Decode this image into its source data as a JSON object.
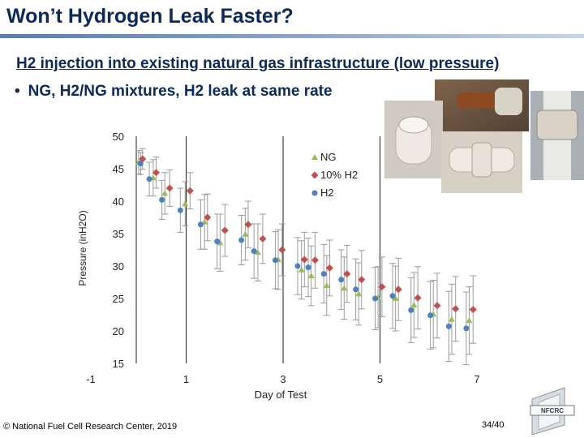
{
  "slide": {
    "title": "Won’t Hydrogen Leak Faster?",
    "subheading": "H2 injection into existing natural gas infrastructure (low pressure)",
    "bullet": "NG, H2/NG mixtures, H2 leak at same rate",
    "bullet_symbol": "•",
    "footer_symbol": "©",
    "footer": "National Fuel Cell Research Center, 2019",
    "page_number": "34/40",
    "logo_text": "NFCRC"
  },
  "chart_data": {
    "type": "scatter",
    "title": "",
    "xlabel": "Day of Test",
    "ylabel": "Pressure (inH2O)",
    "xlim": [
      -1,
      7
    ],
    "ylim": [
      15,
      50
    ],
    "x_ticks": [
      -1,
      1,
      3,
      5,
      7
    ],
    "y_ticks": [
      15,
      20,
      25,
      30,
      35,
      40,
      45,
      50
    ],
    "legend_position": "top-right",
    "colors": {
      "NG": "#9bbb59",
      "10% H2": "#c0504d",
      "H2": "#4f81bd"
    },
    "error_bar_color": "#9a9a9a",
    "series": [
      {
        "name": "NG",
        "marker": "triangle",
        "x": [
          0.02,
          0.32,
          0.56,
          0.98,
          1.38,
          1.7,
          2.22,
          2.48,
          2.9,
          3.38,
          3.58,
          3.9,
          4.26,
          4.56,
          4.96,
          5.32,
          5.7,
          6.1,
          6.48,
          6.84
        ],
        "y": [
          46.0,
          43.6,
          41.2,
          39.6,
          36.8,
          33.6,
          34.9,
          32.1,
          31.0,
          29.4,
          28.5,
          27.0,
          26.6,
          25.7,
          25.2,
          25.0,
          24.0,
          22.6,
          21.8,
          21.6
        ],
        "err": [
          1.8,
          2.8,
          3.2,
          3.4,
          4.2,
          4.4,
          4.0,
          4.4,
          4.6,
          4.5,
          4.6,
          4.6,
          4.8,
          4.8,
          4.7,
          5.0,
          5.0,
          5.2,
          5.4,
          5.2
        ]
      },
      {
        "name": "10% H2",
        "marker": "diamond",
        "x": [
          0.1,
          0.38,
          0.66,
          1.08,
          1.44,
          1.8,
          2.28,
          2.58,
          2.98,
          3.44,
          3.66,
          3.96,
          4.32,
          4.62,
          5.04,
          5.38,
          5.78,
          6.18,
          6.56,
          6.92
        ],
        "y": [
          46.5,
          44.4,
          42.0,
          41.6,
          37.5,
          35.5,
          36.4,
          34.2,
          32.5,
          31.0,
          30.9,
          29.7,
          28.8,
          27.9,
          26.8,
          26.4,
          25.1,
          23.9,
          23.4,
          23.3
        ],
        "err": [
          1.6,
          2.4,
          2.8,
          2.8,
          3.6,
          4.0,
          3.6,
          3.8,
          4.0,
          4.2,
          4.3,
          4.3,
          4.4,
          4.5,
          4.6,
          4.8,
          4.8,
          5.0,
          5.0,
          5.2
        ]
      },
      {
        "name": "H2",
        "marker": "circle",
        "x": [
          0.06,
          0.24,
          0.5,
          0.88,
          1.3,
          1.64,
          2.14,
          2.4,
          2.84,
          3.3,
          3.52,
          3.84,
          4.2,
          4.5,
          4.9,
          5.26,
          5.64,
          6.04,
          6.42,
          6.78
        ],
        "y": [
          45.8,
          43.4,
          40.2,
          38.6,
          36.4,
          33.8,
          34.0,
          32.3,
          30.9,
          30.0,
          29.8,
          28.8,
          27.9,
          26.4,
          25.0,
          25.4,
          23.2,
          22.4,
          20.7,
          20.4
        ],
        "err": [
          1.7,
          2.6,
          3.0,
          3.4,
          3.8,
          4.2,
          3.8,
          4.2,
          4.4,
          4.4,
          4.5,
          4.5,
          4.6,
          4.7,
          4.8,
          5.0,
          5.0,
          5.2,
          5.4,
          5.6
        ]
      }
    ]
  }
}
